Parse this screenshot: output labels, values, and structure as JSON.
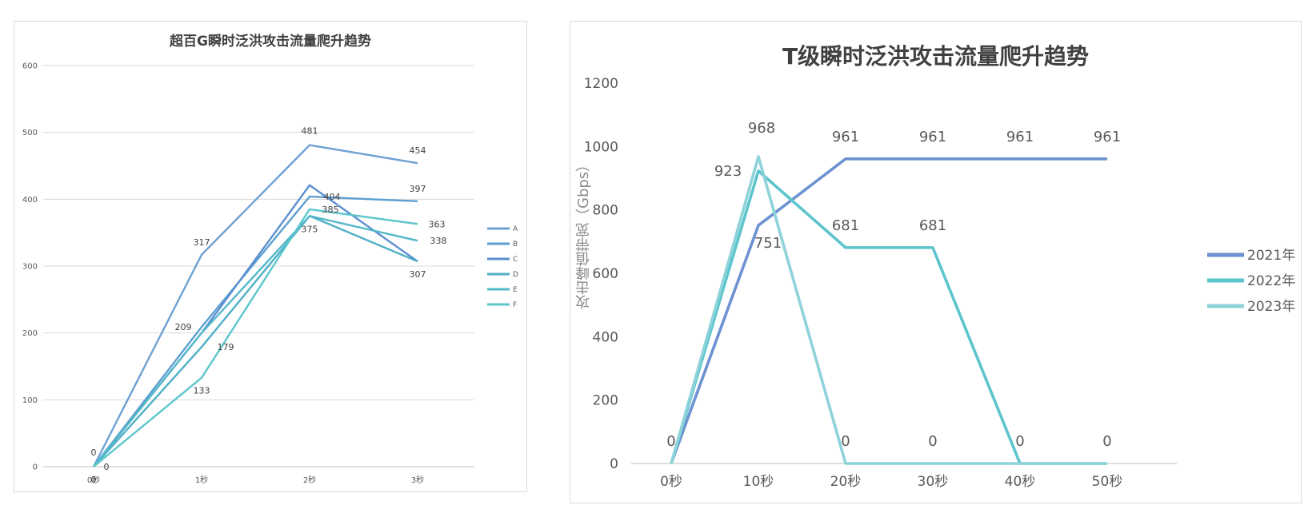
{
  "chart_data": [
    {
      "type": "line",
      "title": "超百G瞬时泛洪攻击流量爬升趋势",
      "categories": [
        "0秒",
        "1秒",
        "2秒",
        "3秒"
      ],
      "ylim": [
        0,
        600
      ],
      "yticks": [
        0,
        100,
        200,
        300,
        400,
        500,
        600
      ],
      "grid": true,
      "legend": "right",
      "series": [
        {
          "name": "A",
          "values": [
            0,
            317,
            481,
            454
          ],
          "color": "#6ea1d3"
        },
        {
          "name": "B",
          "values": [
            0,
            209,
            404,
            397
          ],
          "color": "#5c9fd0"
        },
        {
          "name": "C",
          "values": [
            0,
            200,
            421,
            307
          ],
          "color": "#5b8fd0"
        },
        {
          "name": "D",
          "values": [
            0,
            179,
            375,
            307
          ],
          "color": "#4fb0c6"
        },
        {
          "name": "E",
          "values": [
            0,
            200,
            375,
            338
          ],
          "color": "#53b8c8"
        },
        {
          "name": "F",
          "values": [
            0,
            133,
            385,
            363
          ],
          "color": "#5cc6cc"
        }
      ],
      "data_labels": [
        {
          "text": "0",
          "series": 0,
          "index": 0
        },
        {
          "text": "0",
          "series": 1,
          "index": 0
        },
        {
          "text": "0",
          "series": 5,
          "index": 0
        },
        {
          "text": "317",
          "series": 0,
          "index": 1
        },
        {
          "text": "209",
          "series": 1,
          "index": 1
        },
        {
          "text": "179",
          "series": 3,
          "index": 1
        },
        {
          "text": "133",
          "series": 5,
          "index": 1
        },
        {
          "text": "481",
          "series": 0,
          "index": 2
        },
        {
          "text": "404",
          "series": 1,
          "index": 2
        },
        {
          "text": "385",
          "series": 5,
          "index": 2
        },
        {
          "text": "375",
          "series": 3,
          "index": 2
        },
        {
          "text": "454",
          "series": 0,
          "index": 3
        },
        {
          "text": "397",
          "series": 1,
          "index": 3
        },
        {
          "text": "363",
          "series": 5,
          "index": 3
        },
        {
          "text": "338",
          "series": 4,
          "index": 3
        },
        {
          "text": "307",
          "series": 2,
          "index": 3
        }
      ]
    },
    {
      "type": "line",
      "title": "T级瞬时泛洪攻击流量爬升趋势",
      "ylabel": "攻击峰值带宽（Gbps）",
      "categories": [
        "0秒",
        "10秒",
        "20秒",
        "30秒",
        "40秒",
        "50秒"
      ],
      "ylim": [
        0,
        1200
      ],
      "yticks": [
        0,
        200,
        400,
        600,
        800,
        1000,
        1200
      ],
      "grid": false,
      "legend": "right",
      "series": [
        {
          "name": "2021年",
          "values": [
            0,
            751,
            961,
            961,
            961,
            961
          ],
          "color": "#6c92d1"
        },
        {
          "name": "2022年",
          "values": [
            0,
            923,
            681,
            681,
            0,
            0
          ],
          "color": "#5cc4cc"
        },
        {
          "name": "2023年",
          "values": [
            0,
            968,
            0,
            0,
            0,
            0
          ],
          "color": "#8ed2da"
        }
      ],
      "data_labels": [
        {
          "text": "0",
          "series": 0,
          "index": 0
        },
        {
          "text": "968",
          "series": 2,
          "index": 1
        },
        {
          "text": "923",
          "series": 1,
          "index": 1
        },
        {
          "text": "751",
          "series": 0,
          "index": 1
        },
        {
          "text": "961",
          "series": 0,
          "index": 2
        },
        {
          "text": "681",
          "series": 1,
          "index": 2
        },
        {
          "text": "0",
          "series": 2,
          "index": 2
        },
        {
          "text": "961",
          "series": 0,
          "index": 3
        },
        {
          "text": "681",
          "series": 1,
          "index": 3
        },
        {
          "text": "0",
          "series": 2,
          "index": 3
        },
        {
          "text": "961",
          "series": 0,
          "index": 4
        },
        {
          "text": "0",
          "series": 1,
          "index": 4
        },
        {
          "text": "961",
          "series": 0,
          "index": 5
        },
        {
          "text": "0",
          "series": 1,
          "index": 5
        }
      ]
    }
  ]
}
